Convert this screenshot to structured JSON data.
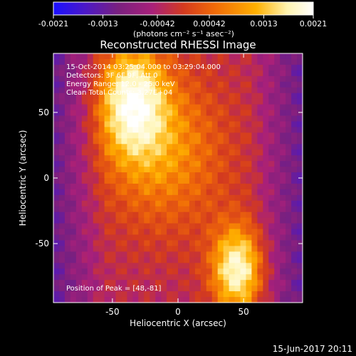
{
  "colorbar": {
    "tick_labels": [
      "-0.0021",
      "-0.0013",
      "-0.00042",
      "0.00042",
      "0.0013",
      "0.0021"
    ],
    "tick_values": [
      -0.0021,
      -0.0013,
      -0.00042,
      0.00042,
      0.0013,
      0.0021
    ],
    "range": [
      -0.0021,
      0.0021
    ],
    "units_label": "(photons cm⁻² s⁻¹ asec⁻²)",
    "colors": [
      "#1a10ff",
      "#4b18c8",
      "#7a207f",
      "#a8207a",
      "#d33a1f",
      "#f06a08",
      "#ffb000",
      "#fff4b0",
      "#ffffff"
    ]
  },
  "chart_data": {
    "type": "heatmap",
    "title": "Reconstructed RHESSI Image",
    "xlabel": "Heliocentric X (arcsec)",
    "ylabel": "Heliocentric Y (arcsec)",
    "x_ticks": [
      -50,
      0,
      50
    ],
    "x_tick_labels": [
      "-50",
      "0",
      "50"
    ],
    "y_ticks": [
      50,
      0,
      -50
    ],
    "y_tick_labels": [
      "50",
      "0",
      "-50"
    ],
    "xlim": [
      -95,
      95
    ],
    "ylim": [
      -95,
      95
    ],
    "peak": [
      48,
      -81
    ],
    "bright_sources": [
      {
        "x": 45,
        "y": -70,
        "sx": 14,
        "sy": 24,
        "amp": 1.0
      },
      {
        "x": -35,
        "y": 60,
        "sx": 18,
        "sy": 30,
        "amp": 0.9
      },
      {
        "x": -10,
        "y": 20,
        "sx": 35,
        "sy": 45,
        "amp": 0.55
      }
    ],
    "annotations": [
      "15-Oct-2014 03:25:04.000 to 03:29:04.000",
      "Detectors: 3F 6F 9F, Att 0",
      "Energy Range: 12.0 - 25.0 keV",
      "Clean    Total Counts: 3.27E+04",
      "Position of Peak = [48,-81]"
    ]
  },
  "footer": {
    "date": "15-Jun-2017 20:11"
  }
}
